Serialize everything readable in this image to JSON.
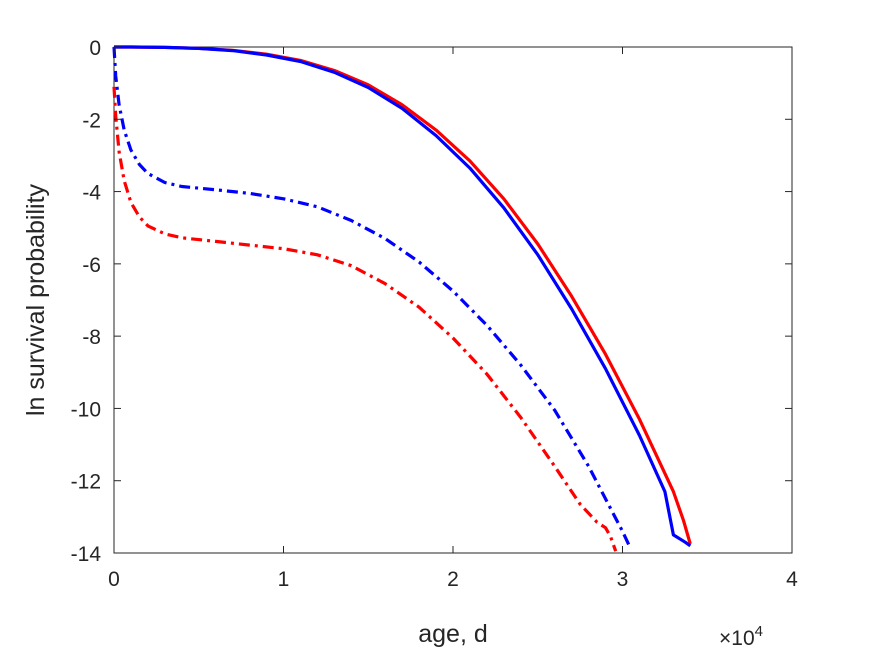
{
  "chart_data": {
    "type": "line",
    "xlabel": "age, d",
    "ylabel": "ln survival probability",
    "x_exponent": {
      "base": "×10",
      "power": "4"
    },
    "xlim": [
      0,
      40000
    ],
    "ylim": [
      -14,
      0
    ],
    "xticks": [
      0,
      10000,
      20000,
      30000,
      40000
    ],
    "xtick_labels": [
      "0",
      "1",
      "2",
      "3",
      "4"
    ],
    "yticks": [
      0,
      -2,
      -4,
      -6,
      -8,
      -10,
      -12,
      -14
    ],
    "ytick_labels": [
      "0",
      "-2",
      "-4",
      "-6",
      "-8",
      "-10",
      "-12",
      "-14"
    ],
    "grid": false,
    "legend": "none",
    "series": [
      {
        "color": "#ff0000",
        "style": "solid",
        "x": [
          0,
          1000,
          3000,
          5000,
          7000,
          9000,
          11000,
          13000,
          15000,
          17000,
          19000,
          21000,
          23000,
          25000,
          27000,
          29000,
          31000,
          33000,
          33600,
          34000
        ],
        "y": [
          0,
          0,
          -0.01,
          -0.04,
          -0.09,
          -0.2,
          -0.37,
          -0.65,
          -1.05,
          -1.6,
          -2.3,
          -3.15,
          -4.2,
          -5.45,
          -6.9,
          -8.5,
          -10.3,
          -12.3,
          -13.1,
          -13.75
        ]
      },
      {
        "color": "#0000ff",
        "style": "solid",
        "x": [
          0,
          1000,
          3000,
          5000,
          7000,
          9000,
          11000,
          13000,
          15000,
          17000,
          19000,
          21000,
          23000,
          25000,
          27000,
          29000,
          31000,
          32500,
          33000,
          33700,
          34000
        ],
        "y": [
          0,
          0,
          -0.01,
          -0.04,
          -0.1,
          -0.22,
          -0.4,
          -0.7,
          -1.12,
          -1.7,
          -2.45,
          -3.35,
          -4.45,
          -5.75,
          -7.25,
          -8.9,
          -10.75,
          -12.3,
          -13.5,
          -13.7,
          -13.8
        ]
      },
      {
        "color": "#0000ff",
        "style": "dash-dot",
        "x": [
          0,
          100,
          300,
          600,
          1000,
          1500,
          2000,
          3000,
          4000,
          6000,
          8000,
          10000,
          12000,
          14000,
          16000,
          18000,
          20000,
          22000,
          24000,
          26000,
          28000,
          29000,
          30000,
          30400
        ],
        "y": [
          0,
          -0.8,
          -1.6,
          -2.3,
          -2.85,
          -3.25,
          -3.5,
          -3.75,
          -3.86,
          -3.95,
          -4.05,
          -4.2,
          -4.42,
          -4.8,
          -5.3,
          -5.95,
          -6.75,
          -7.7,
          -8.8,
          -10.05,
          -11.6,
          -12.5,
          -13.4,
          -13.8
        ]
      },
      {
        "color": "#ff0000",
        "style": "dash-dot",
        "x": [
          0,
          100,
          300,
          600,
          1000,
          1500,
          2000,
          3000,
          4000,
          6000,
          8000,
          10000,
          12000,
          14000,
          16000,
          18000,
          20000,
          22000,
          24000,
          26000,
          27500,
          28500,
          29000,
          29300,
          29600
        ],
        "y": [
          -1.1,
          -1.9,
          -2.9,
          -3.7,
          -4.3,
          -4.7,
          -4.95,
          -5.17,
          -5.28,
          -5.38,
          -5.48,
          -5.58,
          -5.75,
          -6.05,
          -6.55,
          -7.2,
          -8.05,
          -9.05,
          -10.25,
          -11.6,
          -12.65,
          -13.15,
          -13.3,
          -13.55,
          -13.95
        ]
      }
    ]
  }
}
